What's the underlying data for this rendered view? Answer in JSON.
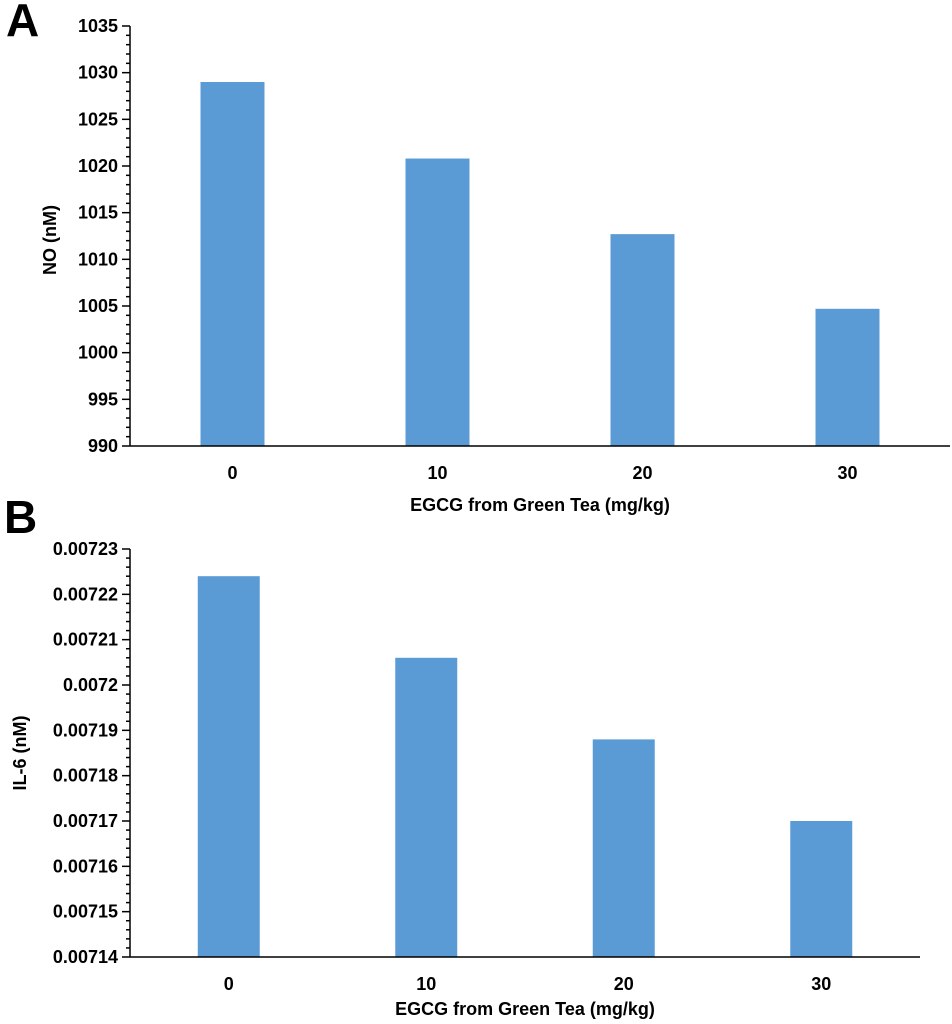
{
  "figure": {
    "panel_letters": [
      "A",
      "B"
    ]
  },
  "colors": {
    "bar": "#5b9bd5",
    "axis": "#000000"
  },
  "chart_data": [
    {
      "type": "bar",
      "panel": "A",
      "categories": [
        "0",
        "10",
        "20",
        "30"
      ],
      "series": [
        {
          "values": [
            1029,
            1020.8,
            1012.7,
            1004.7
          ]
        }
      ],
      "xlabel": "EGCG from Green Tea (mg/kg)",
      "ylabel": "NO (nM)",
      "ylim": [
        990,
        1035
      ],
      "yticks": [
        "990",
        "995",
        "1000",
        "1005",
        "1010",
        "1015",
        "1020",
        "1025",
        "1030",
        "1035"
      ],
      "minor_ticks_per_major": 5,
      "grid": false,
      "legend": "none"
    },
    {
      "type": "bar",
      "panel": "B",
      "categories": [
        "0",
        "10",
        "20",
        "30"
      ],
      "series": [
        {
          "values": [
            0.007224,
            0.007206,
            0.007188,
            0.00717
          ]
        }
      ],
      "xlabel": "EGCG from Green Tea (mg/kg)",
      "ylabel": "IL-6 (nM)",
      "ylim": [
        0.00714,
        0.00723
      ],
      "yticks": [
        "0.00714",
        "0.00715",
        "0.00716",
        "0.00717",
        "0.00718",
        "0.00719",
        "0.0072",
        "0.00721",
        "0.00722",
        "0.00723"
      ],
      "minor_ticks_per_major": 5,
      "grid": false,
      "legend": "none"
    }
  ]
}
